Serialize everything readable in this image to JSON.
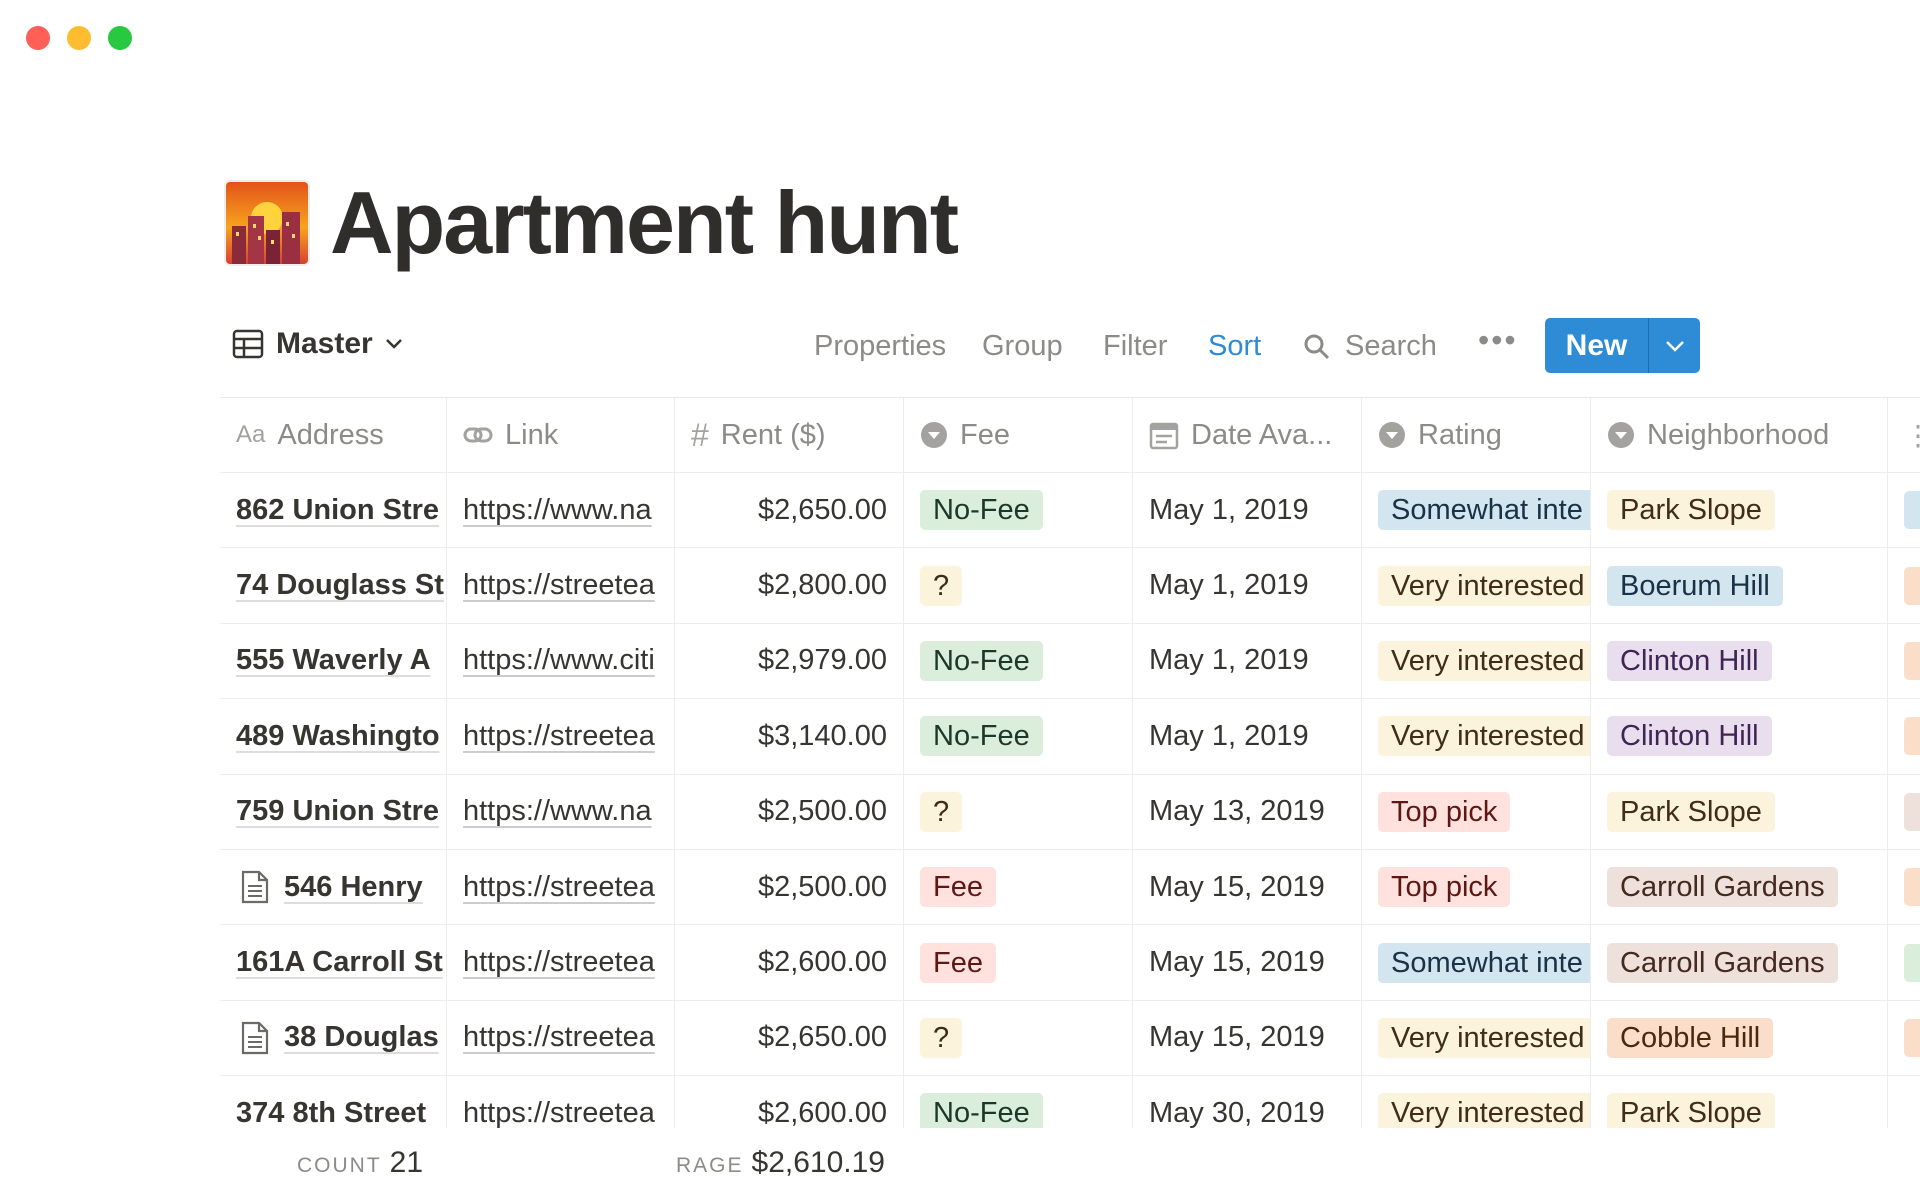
{
  "window": {
    "controls": [
      "close",
      "minimize",
      "maximize"
    ]
  },
  "page": {
    "title": "Apartment hunt",
    "icon": "sunset-city-emoji"
  },
  "toolbar": {
    "view_name": "Master",
    "properties": "Properties",
    "group": "Group",
    "filter": "Filter",
    "sort": "Sort",
    "search": "Search",
    "new": "New",
    "accent": "#2e8bd6"
  },
  "table": {
    "columns": [
      {
        "label": "Address",
        "icon": "text-icon"
      },
      {
        "label": "Link",
        "icon": "link-icon"
      },
      {
        "label": "Rent ($)",
        "icon": "number-icon"
      },
      {
        "label": "Fee",
        "icon": "select-icon"
      },
      {
        "label": "Date Ava...",
        "icon": "calendar-icon"
      },
      {
        "label": "Rating",
        "icon": "select-icon"
      },
      {
        "label": "Neighborhood",
        "icon": "select-icon"
      }
    ],
    "rows": [
      {
        "address": "862 Union Stre",
        "doc": false,
        "link": "https://www.na",
        "rent": "$2,650.00",
        "fee": "No-Fee",
        "date": "May 1, 2019",
        "rating": "Somewhat inte",
        "hood": "Park Slope",
        "extra": "blue"
      },
      {
        "address": "74 Douglass St",
        "doc": false,
        "link": "https://streetea",
        "rent": "$2,800.00",
        "fee": "?",
        "date": "May 1, 2019",
        "rating": "Very interested",
        "hood": "Boerum Hill",
        "extra": "orange"
      },
      {
        "address": "555 Waverly A",
        "doc": false,
        "link": "https://www.citi",
        "rent": "$2,979.00",
        "fee": "No-Fee",
        "date": "May 1, 2019",
        "rating": "Very interested",
        "hood": "Clinton Hill",
        "extra": "orange"
      },
      {
        "address": "489 Washingto",
        "doc": false,
        "link": "https://streetea",
        "rent": "$3,140.00",
        "fee": "No-Fee",
        "date": "May 1, 2019",
        "rating": "Very interested",
        "hood": "Clinton Hill",
        "extra": "orange"
      },
      {
        "address": "759 Union Stre",
        "doc": false,
        "link": "https://www.na",
        "rent": "$2,500.00",
        "fee": "?",
        "date": "May 13, 2019",
        "rating": "Top pick",
        "hood": "Park Slope",
        "extra": "gray"
      },
      {
        "address": "546 Henry",
        "doc": true,
        "link": "https://streetea",
        "rent": "$2,500.00",
        "fee": "Fee",
        "date": "May 15, 2019",
        "rating": "Top pick",
        "hood": "Carroll Gardens",
        "extra": "orange"
      },
      {
        "address": "161A Carroll St",
        "doc": false,
        "link": "https://streetea",
        "rent": "$2,600.00",
        "fee": "Fee",
        "date": "May 15, 2019",
        "rating": "Somewhat inte",
        "hood": "Carroll Gardens",
        "extra": "green"
      },
      {
        "address": "38 Douglas",
        "doc": true,
        "link": "https://streetea",
        "rent": "$2,650.00",
        "fee": "?",
        "date": "May 15, 2019",
        "rating": "Very interested",
        "hood": "Cobble Hill",
        "extra": "orange"
      },
      {
        "address": "374 8th Street",
        "doc": false,
        "link": "https://streetea",
        "rent": "$2,600.00",
        "fee": "No-Fee",
        "date": "May 30, 2019",
        "rating": "Very interested",
        "hood": "Park Slope",
        "extra": ""
      }
    ]
  },
  "chip_colors": {
    "No-Fee": [
      "#dbeddb",
      "#1c3829"
    ],
    "?": [
      "#fbf3db",
      "#402c1b"
    ],
    "Fee": [
      "#ffe2dd",
      "#5d1715"
    ],
    "Somewhat inte": [
      "#d3e5ef",
      "#183347"
    ],
    "Very interested": [
      "#fbf3db",
      "#402c1b"
    ],
    "Top pick": [
      "#ffe2dd",
      "#5d1715"
    ],
    "Park Slope": [
      "#fbf3db",
      "#402c1b"
    ],
    "Boerum Hill": [
      "#d3e5ef",
      "#183347"
    ],
    "Clinton Hill": [
      "#e8deee",
      "#412454"
    ],
    "Carroll Gardens": [
      "#eee0da",
      "#442a1e"
    ],
    "Cobble Hill": [
      "#fadec9",
      "#49290e"
    ],
    "blue": [
      "#d3e5ef"
    ],
    "orange": [
      "#fadec9"
    ],
    "gray": [
      "#eee0da"
    ],
    "green": [
      "#dbeddb"
    ]
  },
  "footer": {
    "count_label": "COUNT",
    "count": "21",
    "avg_label": "RAGE",
    "avg": "$2,610.19"
  }
}
